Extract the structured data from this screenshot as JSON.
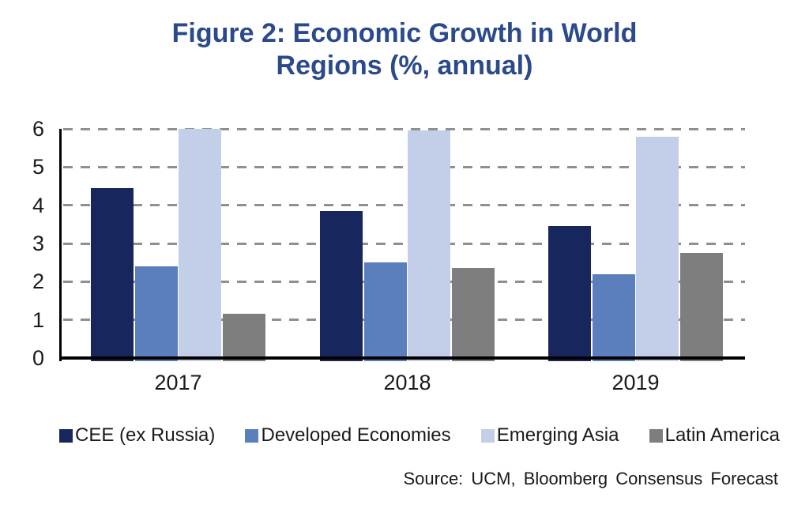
{
  "figure": {
    "title": "Figure 2: Economic Growth in World Regions (%, annual)",
    "source": "Source: UCM, Bloomberg Consensus Forecast"
  },
  "colors": {
    "title_text": "#2B4A8C",
    "axis_line": "#000000",
    "gridline": "#8F8F8F",
    "label_text": "#1A1A1A"
  },
  "chart_data": {
    "type": "bar",
    "title": "Figure 2: Economic Growth in World Regions (%, annual)",
    "categories": [
      "2017",
      "2018",
      "2019"
    ],
    "series": [
      {
        "name": "CEE (ex Russia)",
        "color": "#17265C",
        "values": [
          4.45,
          3.85,
          3.45
        ]
      },
      {
        "name": "Developed Economies",
        "color": "#5B7EBD",
        "values": [
          2.4,
          2.5,
          2.2
        ]
      },
      {
        "name": "Emerging Asia",
        "color": "#C3CFE8",
        "values": [
          6.0,
          5.95,
          5.8
        ]
      },
      {
        "name": "Latin America",
        "color": "#7E7E7E",
        "values": [
          1.15,
          2.35,
          2.75
        ]
      }
    ],
    "xlabel": "",
    "ylabel": "",
    "ylim": [
      0,
      6
    ],
    "yticks": [
      0,
      1,
      2,
      3,
      4,
      5,
      6
    ],
    "grid": "horizontal-dashed",
    "legend_position": "bottom"
  }
}
